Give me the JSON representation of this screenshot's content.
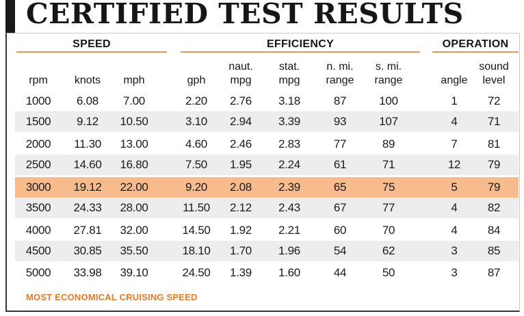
{
  "title": "CERTIFIED TEST RESULTS",
  "groups": {
    "speed": "SPEED",
    "efficiency": "EFFICIENCY",
    "operation": "OPERATION"
  },
  "columns": [
    {
      "key": "rpm",
      "line1": "",
      "line2": "rpm"
    },
    {
      "key": "knots",
      "line1": "",
      "line2": "knots"
    },
    {
      "key": "mph",
      "line1": "",
      "line2": "mph"
    },
    {
      "key": "gph",
      "line1": "",
      "line2": "gph"
    },
    {
      "key": "naut_mpg",
      "line1": "naut.",
      "line2": "mpg"
    },
    {
      "key": "stat_mpg",
      "line1": "stat.",
      "line2": "mpg"
    },
    {
      "key": "nmi_range",
      "line1": "n. mi.",
      "line2": "range"
    },
    {
      "key": "smi_range",
      "line1": "s. mi.",
      "line2": "range"
    },
    {
      "key": "angle",
      "line1": "",
      "line2": "angle"
    },
    {
      "key": "sound_level",
      "line1": "sound",
      "line2": "level"
    }
  ],
  "rows": [
    [
      "1000",
      "6.08",
      "7.00",
      "2.20",
      "2.76",
      "3.18",
      "87",
      "100",
      "1",
      "72"
    ],
    [
      "1500",
      "9.12",
      "10.50",
      "3.10",
      "2.94",
      "3.39",
      "93",
      "107",
      "4",
      "71"
    ],
    [
      "2000",
      "11.30",
      "13.00",
      "4.60",
      "2.46",
      "2.83",
      "77",
      "89",
      "7",
      "81"
    ],
    [
      "2500",
      "14.60",
      "16.80",
      "7.50",
      "1.95",
      "2.24",
      "61",
      "71",
      "12",
      "79"
    ],
    [
      "3000",
      "19.12",
      "22.00",
      "9.20",
      "2.08",
      "2.39",
      "65",
      "75",
      "5",
      "79"
    ],
    [
      "3500",
      "24.33",
      "28.00",
      "11.50",
      "2.12",
      "2.43",
      "67",
      "77",
      "4",
      "82"
    ],
    [
      "4000",
      "27.81",
      "32.00",
      "14.50",
      "1.92",
      "2.21",
      "60",
      "70",
      "4",
      "84"
    ],
    [
      "4500",
      "30.85",
      "35.50",
      "18.10",
      "1.70",
      "1.96",
      "54",
      "62",
      "3",
      "85"
    ],
    [
      "5000",
      "33.98",
      "39.10",
      "24.50",
      "1.39",
      "1.60",
      "44",
      "50",
      "3",
      "87"
    ]
  ],
  "highlight_row": 4,
  "highlight_color": "#f8bb8d",
  "accent_color": "#e8955a",
  "footnote": "MOST ECONOMICAL CRUISING SPEED"
}
